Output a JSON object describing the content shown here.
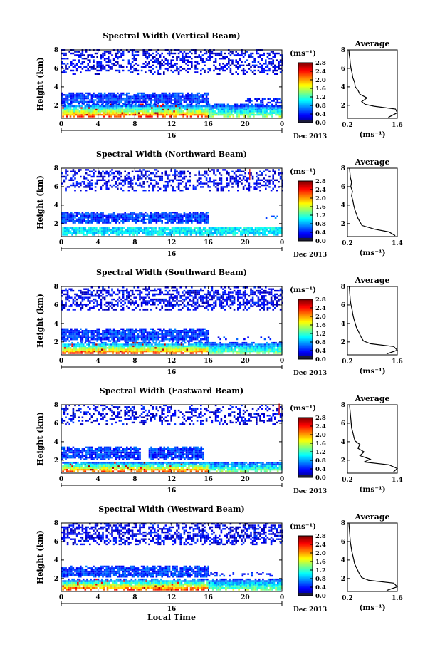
{
  "figure": {
    "x_label": "Local Time",
    "date_label": "Dec 2013",
    "day_label": "16",
    "colorbar_unit": "(ms⁻¹)",
    "avg_xunit": "(ms⁻¹)",
    "avg_title": "Average",
    "ylabel": "Height (km)"
  },
  "chart_data": [
    {
      "type": "heatmap",
      "title": "Spectral Width (Vertical Beam)",
      "xlabel": "",
      "ylabel": "Height (km)",
      "x_ticks": [
        "0",
        "4",
        "8",
        "12",
        "16",
        "20",
        "0"
      ],
      "xlim": [
        0,
        24
      ],
      "y_ticks": [
        "2",
        "4",
        "6",
        "8"
      ],
      "ylim": [
        0.6,
        8
      ],
      "colorbar": {
        "label": "(ms⁻¹)",
        "ticks": [
          "0.0",
          "0.4",
          "0.8",
          "1.2",
          "1.6",
          "2.0",
          "2.4",
          "2.8"
        ],
        "range": [
          0,
          2.8
        ]
      },
      "seed": 11,
      "bands": [
        {
          "t0": 0.1,
          "t1": 23.9,
          "h0": 0.7,
          "h1": 2.0,
          "value": 1.3,
          "density": 0.98
        },
        {
          "t0": 0.0,
          "t1": 16.0,
          "h0": 2.1,
          "h1": 3.3,
          "value": 0.5,
          "density": 0.92
        },
        {
          "t0": 20.0,
          "t1": 24.0,
          "h0": 2.2,
          "h1": 2.7,
          "value": 0.45,
          "density": 0.6
        },
        {
          "t0": 0.0,
          "t1": 24.0,
          "h0": 5.3,
          "h1": 7.9,
          "value": 0.3,
          "density": 0.45
        }
      ],
      "markers": [],
      "profile": {
        "title": "Average",
        "xlabel": "(ms⁻¹)",
        "x_ticks": [
          "0.2",
          "1.6"
        ],
        "xlim": [
          0.2,
          1.6
        ],
        "ylim": [
          0.6,
          8
        ],
        "height": [
          0.7,
          1.2,
          1.6,
          1.9,
          2.1,
          2.4,
          2.8,
          3.2,
          3.6,
          4.0,
          4.5,
          5.0,
          5.5,
          6.0,
          6.5,
          7.0,
          7.5,
          8.0
        ],
        "values": [
          1.35,
          1.6,
          1.55,
          0.95,
          0.7,
          0.6,
          0.75,
          0.55,
          0.5,
          0.42,
          0.4,
          0.35,
          0.33,
          0.3,
          0.28,
          0.27,
          0.25,
          0.24
        ]
      }
    },
    {
      "type": "heatmap",
      "title": "Spectral Width (Northward Beam)",
      "xlabel": "",
      "ylabel": "Height (km)",
      "x_ticks": [
        "0",
        "4",
        "8",
        "12",
        "16",
        "20",
        "0"
      ],
      "xlim": [
        0,
        24
      ],
      "y_ticks": [
        "2",
        "4",
        "6",
        "8"
      ],
      "ylim": [
        0.6,
        8
      ],
      "colorbar": {
        "label": "(ms⁻¹)",
        "ticks": [
          "0.0",
          "0.4",
          "0.8",
          "1.2",
          "1.6",
          "2.0",
          "2.4",
          "2.8"
        ],
        "range": [
          0,
          2.8
        ]
      },
      "seed": 23,
      "bands": [
        {
          "t0": 0.1,
          "t1": 23.9,
          "h0": 0.7,
          "h1": 1.6,
          "value": 1.0,
          "density": 0.92
        },
        {
          "t0": 0.0,
          "t1": 16.0,
          "h0": 2.0,
          "h1": 3.2,
          "value": 0.5,
          "density": 0.9
        },
        {
          "t0": 22.0,
          "t1": 23.5,
          "h0": 2.5,
          "h1": 2.8,
          "value": 0.7,
          "density": 0.4
        },
        {
          "t0": 0.0,
          "t1": 24.0,
          "h0": 5.5,
          "h1": 7.9,
          "value": 0.3,
          "density": 0.4
        }
      ],
      "markers": [
        {
          "t": 20.5,
          "h": 7.3
        }
      ],
      "profile": {
        "title": "Average",
        "xlabel": "(ms⁻¹)",
        "x_ticks": [
          "0.2",
          "1.4"
        ],
        "xlim": [
          0.2,
          1.4
        ],
        "ylim": [
          0.6,
          8
        ],
        "height": [
          0.7,
          1.1,
          1.4,
          1.8,
          2.2,
          2.6,
          3.0,
          3.5,
          4.0,
          4.5,
          5.0,
          5.5,
          6.0,
          6.5,
          7.0,
          7.5,
          8.0
        ],
        "values": [
          1.35,
          1.2,
          0.85,
          0.55,
          0.5,
          0.45,
          0.42,
          0.38,
          0.35,
          0.33,
          0.3,
          0.32,
          0.28,
          0.3,
          0.27,
          0.26,
          0.25
        ]
      }
    },
    {
      "type": "heatmap",
      "title": "Spectral Width (Southward Beam)",
      "xlabel": "",
      "ylabel": "Height (km)",
      "x_ticks": [
        "0",
        "4",
        "8",
        "12",
        "16",
        "20",
        "0"
      ],
      "xlim": [
        0,
        24
      ],
      "y_ticks": [
        "2",
        "4",
        "6",
        "8"
      ],
      "ylim": [
        0.6,
        8
      ],
      "colorbar": {
        "label": "(ms⁻¹)",
        "ticks": [
          "0.0",
          "0.4",
          "0.8",
          "1.2",
          "1.6",
          "2.0",
          "2.4",
          "2.8"
        ],
        "range": [
          0,
          2.8
        ]
      },
      "seed": 37,
      "bands": [
        {
          "t0": 0.1,
          "t1": 23.9,
          "h0": 0.7,
          "h1": 1.9,
          "value": 1.3,
          "density": 0.97
        },
        {
          "t0": 0.0,
          "t1": 16.0,
          "h0": 2.0,
          "h1": 3.3,
          "value": 0.5,
          "density": 0.9
        },
        {
          "t0": 16.0,
          "t1": 23.0,
          "h0": 2.2,
          "h1": 2.5,
          "value": 0.45,
          "density": 0.3
        },
        {
          "t0": 0.0,
          "t1": 24.0,
          "h0": 5.4,
          "h1": 7.9,
          "value": 0.3,
          "density": 0.55
        }
      ],
      "markers": [],
      "profile": {
        "title": "Average",
        "xlabel": "(ms⁻¹)",
        "x_ticks": [
          "0.2",
          "1.6"
        ],
        "xlim": [
          0.2,
          1.6
        ],
        "ylim": [
          0.6,
          8
        ],
        "height": [
          0.7,
          1.1,
          1.5,
          1.8,
          2.1,
          2.4,
          2.8,
          3.2,
          3.6,
          4.0,
          4.5,
          5.0,
          5.5,
          6.0,
          6.5,
          7.0,
          7.5,
          8.0
        ],
        "values": [
          1.3,
          1.6,
          1.5,
          0.85,
          0.65,
          0.6,
          0.55,
          0.5,
          0.45,
          0.42,
          0.38,
          0.35,
          0.33,
          0.3,
          0.28,
          0.27,
          0.26,
          0.25
        ]
      }
    },
    {
      "type": "heatmap",
      "title": "Spectral Width (Eastward Beam)",
      "xlabel": "",
      "ylabel": "Height (km)",
      "x_ticks": [
        "0",
        "4",
        "8",
        "12",
        "16",
        "20",
        "0"
      ],
      "xlim": [
        0,
        24
      ],
      "y_ticks": [
        "2",
        "4",
        "6",
        "8"
      ],
      "ylim": [
        0.6,
        8
      ],
      "colorbar": {
        "label": "(ms⁻¹)",
        "ticks": [
          "0.0",
          "0.4",
          "0.8",
          "1.2",
          "1.6",
          "2.0",
          "2.4",
          "2.8"
        ],
        "range": [
          0,
          2.8
        ]
      },
      "seed": 41,
      "bands": [
        {
          "t0": 0.1,
          "t1": 23.9,
          "h0": 0.7,
          "h1": 1.8,
          "value": 1.2,
          "density": 0.95
        },
        {
          "t0": 0.0,
          "t1": 8.5,
          "h0": 2.0,
          "h1": 3.3,
          "value": 0.5,
          "density": 0.9
        },
        {
          "t0": 9.5,
          "t1": 15.5,
          "h0": 2.0,
          "h1": 3.3,
          "value": 0.5,
          "density": 0.92
        },
        {
          "t0": 0.0,
          "t1": 24.0,
          "h0": 5.8,
          "h1": 7.9,
          "value": 0.3,
          "density": 0.4
        }
      ],
      "markers": [
        {
          "t": 23.7,
          "h": 7.5
        }
      ],
      "profile": {
        "title": "Average",
        "xlabel": "(ms⁻¹)",
        "x_ticks": [
          "0.2",
          "1.4"
        ],
        "xlim": [
          0.2,
          1.4
        ],
        "ylim": [
          0.6,
          8
        ],
        "height": [
          0.7,
          1.1,
          1.5,
          1.8,
          2.1,
          2.5,
          2.9,
          3.3,
          3.7,
          4.1,
          4.6,
          5.0,
          5.5,
          6.0,
          6.5,
          7.0,
          7.5,
          8.0
        ],
        "values": [
          1.3,
          1.4,
          1.2,
          0.6,
          0.75,
          0.5,
          0.6,
          0.45,
          0.5,
          0.38,
          0.35,
          0.33,
          0.3,
          0.29,
          0.28,
          0.27,
          0.26,
          0.25
        ]
      }
    },
    {
      "type": "heatmap",
      "title": "Spectral Width (Westward Beam)",
      "xlabel": "Local Time",
      "ylabel": "Height (km)",
      "x_ticks": [
        "0",
        "4",
        "8",
        "12",
        "16",
        "20",
        "0"
      ],
      "xlim": [
        0,
        24
      ],
      "y_ticks": [
        "2",
        "4",
        "6",
        "8"
      ],
      "ylim": [
        0.6,
        8
      ],
      "colorbar": {
        "label": "(ms⁻¹)",
        "ticks": [
          "0.0",
          "0.4",
          "0.8",
          "1.2",
          "1.6",
          "2.0",
          "2.4",
          "2.8"
        ],
        "range": [
          0,
          2.8
        ]
      },
      "seed": 53,
      "bands": [
        {
          "t0": 0.1,
          "t1": 23.9,
          "h0": 0.7,
          "h1": 1.9,
          "value": 1.3,
          "density": 0.97
        },
        {
          "t0": 0.0,
          "t1": 16.0,
          "h0": 2.1,
          "h1": 3.3,
          "value": 0.5,
          "density": 0.9
        },
        {
          "t0": 16.0,
          "t1": 23.0,
          "h0": 2.2,
          "h1": 2.6,
          "value": 0.45,
          "density": 0.35
        },
        {
          "t0": 0.0,
          "t1": 24.0,
          "h0": 5.6,
          "h1": 7.9,
          "value": 0.3,
          "density": 0.55
        }
      ],
      "markers": [],
      "profile": {
        "title": "Average",
        "xlabel": "(ms⁻¹)",
        "x_ticks": [
          "0.2",
          "1.6"
        ],
        "xlim": [
          0.2,
          1.6
        ],
        "ylim": [
          0.6,
          8
        ],
        "height": [
          0.7,
          1.1,
          1.5,
          1.8,
          2.1,
          2.4,
          2.8,
          3.2,
          3.6,
          4.0,
          4.5,
          5.0,
          5.5,
          6.0,
          6.5,
          7.0,
          7.5,
          8.0
        ],
        "values": [
          1.3,
          1.6,
          1.5,
          0.8,
          0.6,
          0.55,
          0.5,
          0.45,
          0.4,
          0.38,
          0.35,
          0.32,
          0.3,
          0.28,
          0.27,
          0.26,
          0.25,
          0.24
        ]
      }
    }
  ]
}
